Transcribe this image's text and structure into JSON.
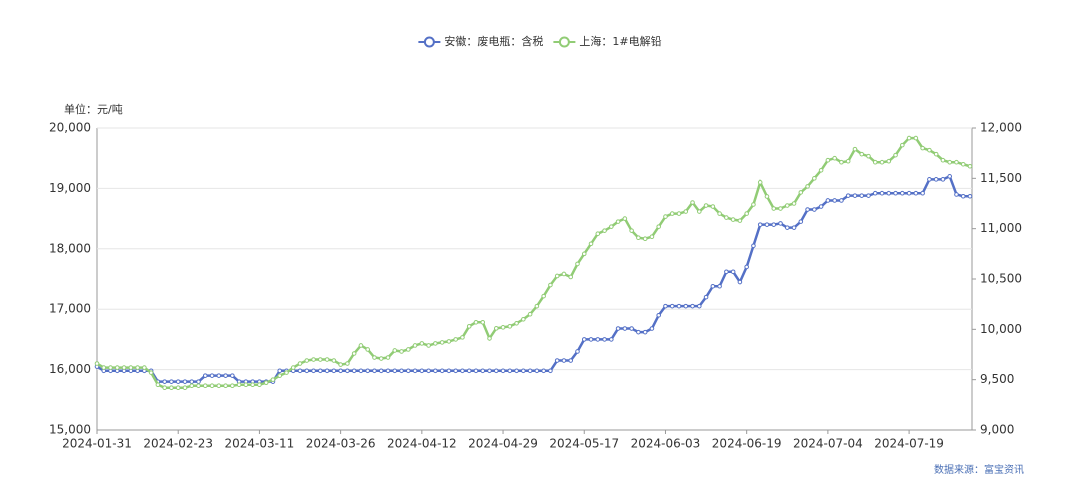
{
  "chart_data": {
    "type": "line",
    "unit_label": "单位：元/吨",
    "source": "数据来源：富宝资讯",
    "legend_position": "top",
    "grid": true,
    "categories": [
      "2024-01-31",
      null,
      null,
      null,
      null,
      null,
      null,
      null,
      null,
      null,
      null,
      null,
      "2024-02-23",
      null,
      null,
      null,
      null,
      null,
      null,
      null,
      null,
      null,
      null,
      null,
      "2024-03-11",
      null,
      null,
      null,
      null,
      null,
      null,
      null,
      null,
      null,
      null,
      null,
      "2024-03-26",
      null,
      null,
      null,
      null,
      null,
      null,
      null,
      null,
      null,
      null,
      null,
      "2024-04-12",
      null,
      null,
      null,
      null,
      null,
      null,
      null,
      null,
      null,
      null,
      null,
      "2024-04-29",
      null,
      null,
      null,
      null,
      null,
      null,
      null,
      null,
      null,
      null,
      null,
      "2024-05-17",
      null,
      null,
      null,
      null,
      null,
      null,
      null,
      null,
      null,
      null,
      null,
      "2024-06-03",
      null,
      null,
      null,
      null,
      null,
      null,
      null,
      null,
      null,
      null,
      null,
      "2024-06-19",
      null,
      null,
      null,
      null,
      null,
      null,
      null,
      null,
      null,
      null,
      null,
      "2024-07-04",
      null,
      null,
      null,
      null,
      null,
      null,
      null,
      null,
      null,
      null,
      null,
      "2024-07-19",
      null,
      null,
      null,
      null,
      null,
      null,
      null,
      null,
      null
    ],
    "ylim": [
      15000,
      20000
    ],
    "yticks": [
      {
        "value": 15000,
        "label": "15,000"
      },
      {
        "value": 16000,
        "label": "16,000"
      },
      {
        "value": 17000,
        "label": "17,000"
      },
      {
        "value": 18000,
        "label": "18,000"
      },
      {
        "value": 19000,
        "label": "19,000"
      },
      {
        "value": 20000,
        "label": "20,000"
      }
    ],
    "y2lim": [
      9000,
      12000
    ],
    "y2ticks": [
      {
        "value": 9000,
        "label": "9,000"
      },
      {
        "value": 9500,
        "label": "9,500"
      },
      {
        "value": 10000,
        "label": "10,000"
      },
      {
        "value": 10500,
        "label": "10,500"
      },
      {
        "value": 11000,
        "label": "11,000"
      },
      {
        "value": 11500,
        "label": "11,500"
      },
      {
        "value": 12000,
        "label": "12,000"
      }
    ],
    "series": [
      {
        "name": "安徽：废电瓶：含税",
        "color": "#5470c6",
        "axis": "y",
        "values": [
          16050,
          15980,
          15980,
          15980,
          15980,
          15980,
          15980,
          15980,
          15980,
          15800,
          15800,
          15800,
          15800,
          15800,
          15800,
          15800,
          15900,
          15900,
          15900,
          15900,
          15900,
          15800,
          15800,
          15800,
          15800,
          15800,
          15800,
          15980,
          15980,
          15980,
          15980,
          15980,
          15980,
          15980,
          15980,
          15980,
          15980,
          15980,
          15980,
          15980,
          15980,
          15980,
          15980,
          15980,
          15980,
          15980,
          15980,
          15980,
          15980,
          15980,
          15980,
          15980,
          15980,
          15980,
          15980,
          15980,
          15980,
          15980,
          15980,
          15980,
          15980,
          15980,
          15980,
          15980,
          15980,
          15980,
          15980,
          15980,
          16150,
          16150,
          16150,
          16300,
          16500,
          16500,
          16500,
          16500,
          16500,
          16680,
          16680,
          16680,
          16620,
          16620,
          16680,
          16900,
          17050,
          17050,
          17050,
          17050,
          17050,
          17050,
          17200,
          17380,
          17380,
          17620,
          17620,
          17450,
          17700,
          18050,
          18400,
          18400,
          18400,
          18420,
          18350,
          18350,
          18450,
          18650,
          18650,
          18700,
          18800,
          18800,
          18800,
          18880,
          18880,
          18880,
          18880,
          18920,
          18920,
          18920,
          18920,
          18920,
          18920,
          18920,
          18920,
          19150,
          19150,
          19150,
          19200,
          18900,
          18870,
          18870
        ]
      },
      {
        "name": "上海：1#电解铅",
        "color": "#91cc75",
        "axis": "y2",
        "values": [
          9660,
          9620,
          9620,
          9620,
          9620,
          9620,
          9620,
          9620,
          9570,
          9450,
          9420,
          9420,
          9420,
          9420,
          9440,
          9440,
          9440,
          9440,
          9440,
          9440,
          9440,
          9450,
          9450,
          9450,
          9450,
          9470,
          9500,
          9540,
          9570,
          9620,
          9660,
          9690,
          9700,
          9700,
          9700,
          9690,
          9650,
          9660,
          9760,
          9840,
          9800,
          9720,
          9710,
          9720,
          9790,
          9780,
          9800,
          9840,
          9860,
          9840,
          9860,
          9870,
          9880,
          9900,
          9920,
          10030,
          10070,
          10070,
          9910,
          10010,
          10020,
          10030,
          10060,
          10100,
          10150,
          10230,
          10330,
          10440,
          10530,
          10550,
          10520,
          10650,
          10750,
          10850,
          10950,
          10980,
          11020,
          11070,
          11100,
          10980,
          10910,
          10900,
          10920,
          11020,
          11120,
          11150,
          11150,
          11170,
          11260,
          11170,
          11230,
          11220,
          11150,
          11110,
          11090,
          11080,
          11150,
          11240,
          11460,
          11320,
          11200,
          11200,
          11230,
          11250,
          11360,
          11420,
          11500,
          11580,
          11680,
          11700,
          11660,
          11670,
          11790,
          11740,
          11720,
          11660,
          11660,
          11670,
          11730,
          11830,
          11900,
          11900,
          11800,
          11780,
          11740,
          11680,
          11660,
          11660,
          11640,
          11620
        ]
      }
    ]
  }
}
